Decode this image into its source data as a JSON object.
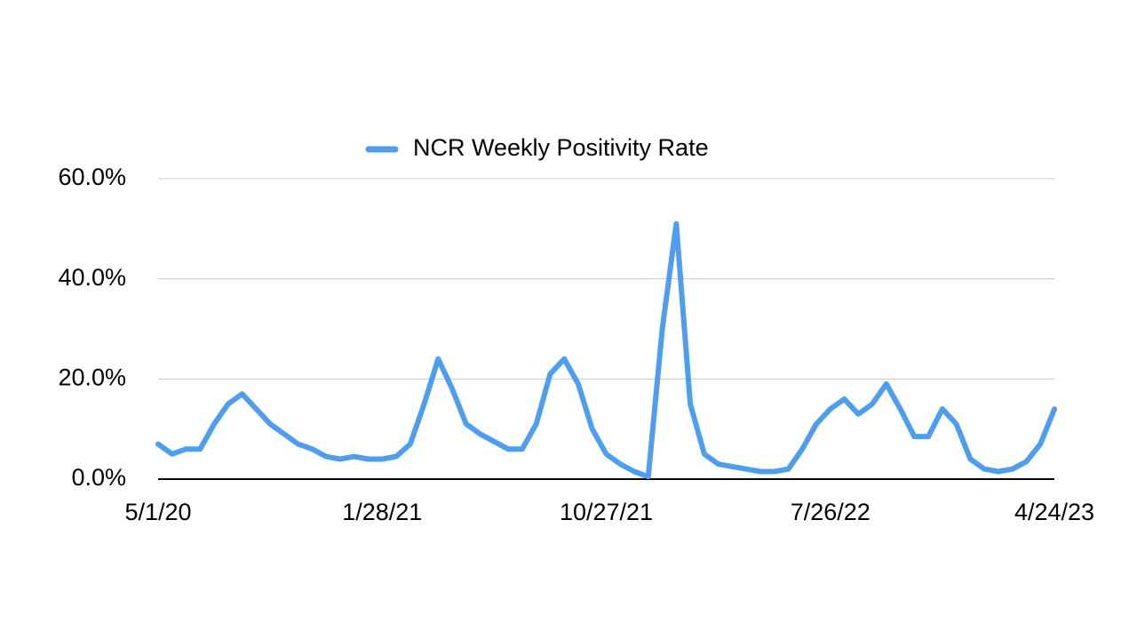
{
  "chart_data": {
    "type": "line",
    "categories": [
      "5/1/20",
      null,
      null,
      null,
      null,
      null,
      null,
      null,
      null,
      null,
      null,
      null,
      null,
      null,
      null,
      null,
      "1/28/21",
      null,
      null,
      null,
      null,
      null,
      null,
      null,
      null,
      null,
      null,
      null,
      null,
      null,
      null,
      null,
      "10/27/21",
      null,
      null,
      null,
      null,
      null,
      null,
      null,
      null,
      null,
      null,
      null,
      null,
      null,
      null,
      null,
      "7/26/22",
      null,
      null,
      null,
      null,
      null,
      null,
      null,
      null,
      null,
      null,
      null,
      null,
      null,
      null,
      null,
      "4/24/23"
    ],
    "series": [
      {
        "name": "NCR Weekly Positivity Rate",
        "color": "#4f9ded",
        "values": [
          7,
          5,
          6,
          6,
          11,
          15,
          17,
          14,
          11,
          9,
          7,
          6,
          4.5,
          4,
          4.5,
          4,
          4,
          4.5,
          7,
          15,
          24,
          18,
          11,
          9,
          7.5,
          6,
          6,
          11,
          21,
          24,
          19,
          10,
          5,
          3,
          1.5,
          0.5,
          30,
          51,
          15,
          5,
          3,
          2.5,
          2,
          1.5,
          1.5,
          2,
          6,
          11,
          14,
          16,
          13,
          15,
          19,
          14,
          8.5,
          8.5,
          14,
          11,
          4,
          2,
          1.5,
          2,
          3.5,
          7,
          14
        ]
      }
    ],
    "ylim": [
      0,
      60
    ],
    "yticks": [
      {
        "value": 0,
        "label": "0.0%"
      },
      {
        "value": 20,
        "label": "20.0%"
      },
      {
        "value": 40,
        "label": "40.0%"
      },
      {
        "value": 60,
        "label": "60.0%"
      }
    ],
    "grid": true,
    "legend": "top"
  }
}
